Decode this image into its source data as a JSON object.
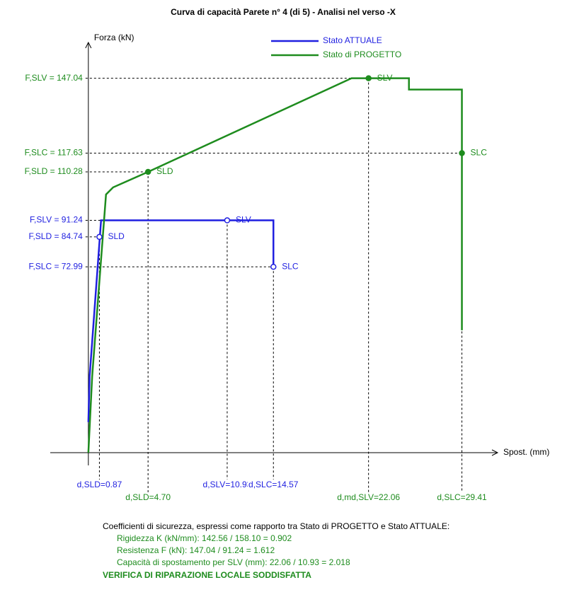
{
  "chart_data": {
    "type": "line",
    "title": "Curva di capacità Parete n° 4 (di 5) - Analisi nel verso -X",
    "y_label": "Forza (kN)",
    "x_label": "Spost. (mm)",
    "xlim": [
      -3,
      32
    ],
    "ylim": [
      -5,
      160
    ],
    "series": [
      {
        "name": "Stato ATTUALE",
        "color": "#1f1fe0",
        "x": [
          0,
          0.1,
          1.0,
          14.57,
          14.57
        ],
        "values": [
          12,
          30,
          91.24,
          91.24,
          72.99
        ]
      },
      {
        "name": "Stato di PROGETTO",
        "color": "#1e8c1e",
        "x": [
          0,
          0.3,
          1.39,
          1.95,
          4.7,
          20.72,
          25.24,
          25.24,
          29.41,
          29.41
        ],
        "values": [
          0,
          30,
          101.4,
          104.2,
          110.28,
          147.04,
          147.04,
          142.6,
          142.6,
          48.1
        ]
      }
    ],
    "markers": [
      {
        "series": 0,
        "label": "SLD",
        "x": 0.87,
        "y": 84.74,
        "x_label": "d,SLD=0.87",
        "y_label": "F,SLD = 84.74"
      },
      {
        "series": 0,
        "label": "SLV",
        "x": 10.93,
        "y": 91.24,
        "x_label": "d,SLV=10.93",
        "y_label": "F,SLV = 91.24"
      },
      {
        "series": 0,
        "label": "SLC",
        "x": 14.57,
        "y": 72.99,
        "x_label": "d,SLC=14.57",
        "y_label": "F,SLC = 72.99"
      },
      {
        "series": 1,
        "label": "SLD",
        "x": 4.7,
        "y": 110.28,
        "x_label": "d,SLD=4.70",
        "y_label": "F,SLD = 110.28"
      },
      {
        "series": 1,
        "label": "SLV",
        "x": 22.06,
        "y": 147.04,
        "x_label": "d,md,SLV=22.06",
        "y_label": "F,SLV = 147.04"
      },
      {
        "series": 1,
        "label": "SLC",
        "x": 29.41,
        "y": 117.63,
        "x_label": "d,SLC=29.41",
        "y_label": "F,SLC = 117.63"
      }
    ],
    "footer": {
      "intro": "Coefficienti di sicurezza, espressi come rapporto tra Stato di PROGETTO e Stato ATTUALE:",
      "lines": [
        "Rigidezza K (kN/mm): 142.56 / 158.10 = 0.902",
        "Resistenza F (kN): 147.04 / 91.24 = 1.612",
        "Capacità di spostamento per SLV (mm): 22.06 / 10.93 = 2.018"
      ],
      "verdict": "VERIFICA DI RIPARAZIONE LOCALE SODDISFATTA"
    }
  }
}
